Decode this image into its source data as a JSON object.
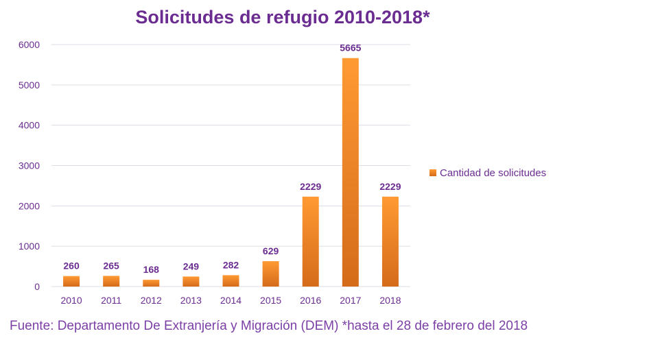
{
  "chart_data": {
    "type": "bar",
    "title": "Solicitudes de refugio 2010-2018*",
    "categories": [
      "2010",
      "2011",
      "2012",
      "2013",
      "2014",
      "2015",
      "2016",
      "2017",
      "2018"
    ],
    "series": [
      {
        "name": "Cantidad de solicitudes",
        "values": [
          260,
          265,
          168,
          249,
          282,
          629,
          2229,
          5665,
          2229
        ]
      }
    ],
    "ylim": [
      0,
      6000
    ],
    "yticks": [
      "0",
      "1000",
      "2000",
      "3000",
      "4000",
      "5000",
      "6000"
    ],
    "grid": true,
    "legend_position": "right",
    "colors": {
      "bar_top": "#ff9a33",
      "bar_bottom": "#d46b1a",
      "text": "#6a2c91"
    }
  },
  "footnote": "Fuente: Departamento De Extranjería y Migración (DEM) *hasta el 28 de febrero del 2018"
}
